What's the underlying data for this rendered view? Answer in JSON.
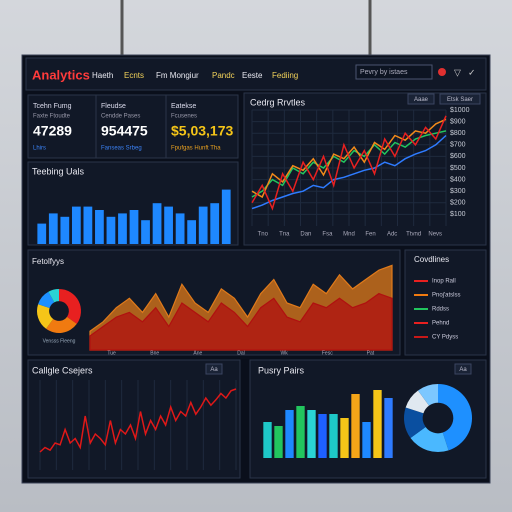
{
  "header": {
    "title": "Analytics",
    "nav": [
      "Haeth",
      "Ecnts",
      "Fm Mongiur",
      "Pandc",
      "Eeste",
      "Fediing"
    ],
    "search": "Pevry by istaes"
  },
  "kpis": [
    {
      "label": "Tcehn Fumg",
      "sublabel": "Faxte Ftoudte",
      "value": "47289",
      "note": "Lhirs"
    },
    {
      "label": "Fleudse",
      "sublabel": "Cendde Pases",
      "value": "954475",
      "note": "Fanseas Srbeg"
    },
    {
      "label": "Eatekse",
      "sublabel": "Fcusenes",
      "value": "$5,03,173",
      "note": "Fpufgas Hunft Tha"
    }
  ],
  "line_panel": {
    "type": "line",
    "title": "Cedrg Rrvtles",
    "buttons": [
      "Aaae",
      "Etsk Saer"
    ],
    "ylim": [
      0,
      1000
    ],
    "yticks": [
      {
        "value": 100,
        "label": "$100"
      },
      {
        "value": 200,
        "label": "$200"
      },
      {
        "value": 300,
        "label": "$300"
      },
      {
        "value": 400,
        "label": "$400"
      },
      {
        "value": 500,
        "label": "$500"
      },
      {
        "value": 600,
        "label": "$600"
      },
      {
        "value": 700,
        "label": "$700"
      },
      {
        "value": 800,
        "label": "$800"
      },
      {
        "value": 900,
        "label": "$900"
      },
      {
        "value": 1000,
        "label": "$1000"
      }
    ],
    "xlabels": [
      "Tno",
      "Tna",
      "Dan",
      "Fsa",
      "Mnd",
      "Fen",
      "Adc",
      "Ttvnd",
      "Nevs"
    ],
    "series": [
      {
        "color": "#2e7bff",
        "values": [
          150,
          180,
          220,
          250,
          280,
          300,
          350,
          330,
          400,
          420,
          450,
          480,
          500,
          550,
          520,
          580,
          620,
          650,
          700,
          780
        ]
      },
      {
        "color": "#22c55e",
        "values": [
          250,
          300,
          400,
          350,
          500,
          450,
          550,
          500,
          600,
          550,
          650,
          600,
          700,
          620,
          720,
          680,
          750,
          780,
          800,
          820
        ]
      },
      {
        "color": "#f28a1a",
        "values": [
          300,
          250,
          450,
          380,
          520,
          480,
          580,
          440,
          620,
          580,
          680,
          550,
          720,
          660,
          780,
          740,
          820,
          800,
          880,
          920
        ]
      },
      {
        "color": "#e82020",
        "values": [
          200,
          350,
          150,
          450,
          300,
          550,
          400,
          600,
          350,
          700,
          500,
          650,
          450,
          750,
          600,
          800,
          700,
          850,
          750,
          950
        ]
      }
    ]
  },
  "bar_panel": {
    "type": "bar",
    "title": "Teebing Uals",
    "color": "#1e88ff",
    "ylim": [
      0,
      100
    ],
    "values": [
      30,
      45,
      40,
      55,
      55,
      50,
      40,
      45,
      50,
      35,
      60,
      55,
      45,
      35,
      55,
      60,
      80
    ]
  },
  "area_panel": {
    "type": "area",
    "title": "Fetolfyys",
    "ylim": [
      0,
      100
    ],
    "xlabels": [
      "Tue",
      "Bne",
      "Ane",
      "Dal",
      "Wk",
      "Fesc",
      "Pat"
    ],
    "series": [
      {
        "color": "#e07a1a",
        "values": [
          20,
          30,
          45,
          55,
          40,
          60,
          35,
          70,
          50,
          40,
          65,
          55,
          35,
          60,
          75,
          50,
          45,
          70,
          60,
          80,
          65,
          75,
          85,
          90
        ]
      },
      {
        "color": "#b01010",
        "values": [
          15,
          25,
          35,
          40,
          30,
          45,
          25,
          50,
          40,
          30,
          50,
          40,
          25,
          45,
          55,
          35,
          30,
          50,
          45,
          55,
          45,
          50,
          60,
          55
        ]
      }
    ]
  },
  "donut_left": {
    "type": "pie",
    "label": "Vensss Fleeng",
    "values": [
      35,
      25,
      20,
      12,
      8
    ],
    "colors": [
      "#e82020",
      "#f07a10",
      "#f5c518",
      "#1e90ff",
      "#2ad4d4"
    ]
  },
  "legend_panel": {
    "title": "Covdlines",
    "items": [
      {
        "name": "Inop Rall",
        "color": "#e82020"
      },
      {
        "name": "Pnoj'atslss",
        "color": "#f07a10"
      },
      {
        "name": "Rddss",
        "color": "#22c55e"
      },
      {
        "name": "Pehnd",
        "color": "#e82020"
      },
      {
        "name": "CY Pdyss",
        "color": "#c81818"
      }
    ]
  },
  "spike_panel": {
    "type": "line",
    "title": "Callgle Csejers",
    "button": "Aa",
    "ylim": [
      0,
      100
    ],
    "series": [
      {
        "color": "#e01818",
        "values": [
          20,
          25,
          22,
          30,
          28,
          45,
          30,
          35,
          25,
          60,
          30,
          40,
          35,
          28,
          55,
          30,
          45,
          40,
          50,
          35,
          65,
          40,
          55,
          45,
          60,
          50,
          70,
          55,
          65,
          60,
          75,
          62,
          70,
          80,
          72,
          78,
          85,
          80,
          88,
          90
        ]
      }
    ]
  },
  "pair_panel": {
    "type": "bar",
    "title": "Pusry Pairs",
    "button": "Aa",
    "ylim": [
      0,
      100
    ],
    "values": [
      45,
      40,
      60,
      65,
      60,
      55,
      55,
      50,
      80,
      45,
      85,
      75
    ],
    "colors": [
      "#1ec8c8",
      "#22c55e",
      "#1e88ff",
      "#22c55e",
      "#2ad4d4",
      "#1e60ff",
      "#1ec8c8",
      "#f5c518",
      "#f5a518",
      "#1e88ff",
      "#f5c518",
      "#2e7bff"
    ]
  },
  "donut_right": {
    "type": "pie",
    "values": [
      45,
      20,
      15,
      10,
      10
    ],
    "colors": [
      "#1e90ff",
      "#4ab8ff",
      "#0a4fa0",
      "#e0e8f0",
      "#7cc7ff"
    ]
  }
}
